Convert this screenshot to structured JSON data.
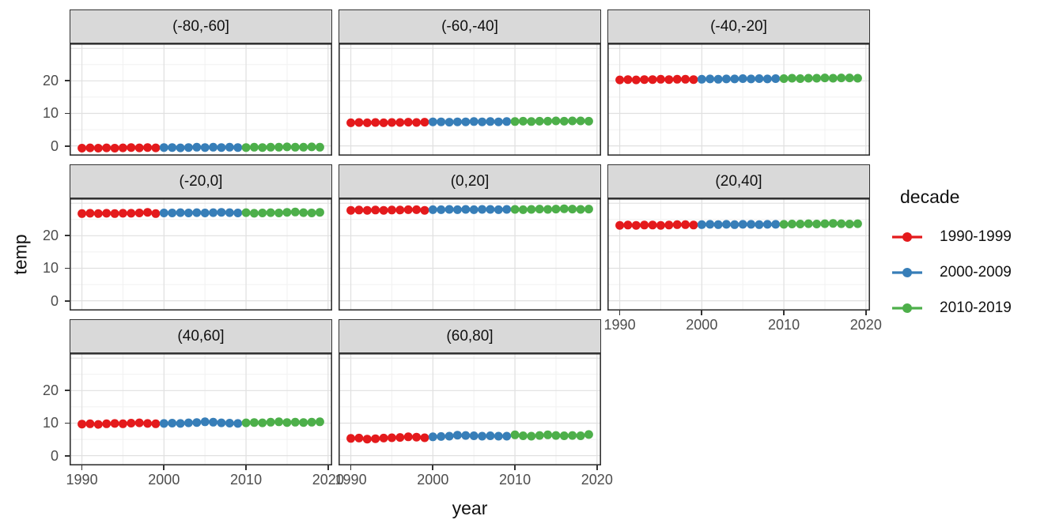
{
  "chart_data": {
    "type": "scatter",
    "title": "",
    "xlabel": "year",
    "ylabel": "temp",
    "legend": {
      "title": "decade",
      "position": "right",
      "entries": [
        {
          "label": "1990-1999",
          "color": "#E41A1C",
          "year_start": 1990,
          "year_end": 1999
        },
        {
          "label": "2000-2009",
          "color": "#377EB8",
          "year_start": 2000,
          "year_end": 2009
        },
        {
          "label": "2010-2019",
          "color": "#4DAF4A",
          "year_start": 2010,
          "year_end": 2019
        }
      ]
    },
    "axes": {
      "xlim": [
        1988.5,
        2020.5
      ],
      "ylim": [
        -3,
        31.5
      ],
      "x_ticks": [
        1990,
        2000,
        2010,
        2020
      ],
      "y_ticks": [
        0,
        10,
        20
      ],
      "x_grid_minor": [
        1995,
        2005,
        2015
      ],
      "y_grid_major": [
        0,
        10,
        20,
        30
      ],
      "y_grid_minor": [
        5,
        15,
        25
      ],
      "grid": true
    },
    "style": {
      "strip_bg": "#D9D9D9",
      "panel_border": "#333333",
      "grid_major": "#E0E0E0",
      "grid_minor": "#F1F1F1",
      "tick_label_color": "#4D4D4D",
      "text_color": "#111111"
    },
    "x": [
      1990,
      1991,
      1992,
      1993,
      1994,
      1995,
      1996,
      1997,
      1998,
      1999,
      2000,
      2001,
      2002,
      2003,
      2004,
      2005,
      2006,
      2007,
      2008,
      2009,
      2010,
      2011,
      2012,
      2013,
      2014,
      2015,
      2016,
      2017,
      2018,
      2019
    ],
    "facets": [
      {
        "label": "(-80,-60]",
        "values": [
          -0.7,
          -0.6,
          -0.7,
          -0.6,
          -0.7,
          -0.6,
          -0.5,
          -0.6,
          -0.5,
          -0.6,
          -0.5,
          -0.5,
          -0.6,
          -0.5,
          -0.4,
          -0.5,
          -0.4,
          -0.5,
          -0.4,
          -0.5,
          -0.5,
          -0.4,
          -0.5,
          -0.4,
          -0.4,
          -0.3,
          -0.4,
          -0.4,
          -0.3,
          -0.4
        ]
      },
      {
        "label": "(-60,-40]",
        "values": [
          7.1,
          7.2,
          7.1,
          7.2,
          7.1,
          7.2,
          7.2,
          7.3,
          7.2,
          7.3,
          7.4,
          7.4,
          7.3,
          7.4,
          7.4,
          7.5,
          7.4,
          7.5,
          7.4,
          7.5,
          7.5,
          7.6,
          7.5,
          7.6,
          7.6,
          7.7,
          7.6,
          7.7,
          7.7,
          7.6
        ]
      },
      {
        "label": "(-40,-20]",
        "values": [
          20.3,
          20.4,
          20.3,
          20.4,
          20.4,
          20.5,
          20.4,
          20.5,
          20.5,
          20.4,
          20.5,
          20.6,
          20.5,
          20.6,
          20.6,
          20.7,
          20.6,
          20.7,
          20.6,
          20.7,
          20.7,
          20.8,
          20.7,
          20.8,
          20.8,
          20.9,
          20.8,
          20.9,
          20.9,
          20.8
        ]
      },
      {
        "label": "(-20,0]",
        "values": [
          26.8,
          26.9,
          26.8,
          26.9,
          26.8,
          26.9,
          26.9,
          27.0,
          27.2,
          26.8,
          27.0,
          27.0,
          27.1,
          27.0,
          27.1,
          27.0,
          27.1,
          27.2,
          27.1,
          27.0,
          27.1,
          26.9,
          27.0,
          27.1,
          27.0,
          27.2,
          27.3,
          27.1,
          27.0,
          27.2
        ]
      },
      {
        "label": "(0,20]",
        "values": [
          27.8,
          27.9,
          27.8,
          27.9,
          27.8,
          27.9,
          27.9,
          28.0,
          28.0,
          27.8,
          28.0,
          28.0,
          28.1,
          28.0,
          28.1,
          28.0,
          28.1,
          28.1,
          28.0,
          28.1,
          28.1,
          28.0,
          28.1,
          28.2,
          28.1,
          28.2,
          28.3,
          28.2,
          28.1,
          28.2
        ]
      },
      {
        "label": "(20,40]",
        "values": [
          23.2,
          23.3,
          23.2,
          23.3,
          23.3,
          23.2,
          23.3,
          23.4,
          23.4,
          23.3,
          23.4,
          23.5,
          23.4,
          23.5,
          23.4,
          23.5,
          23.5,
          23.4,
          23.5,
          23.5,
          23.5,
          23.6,
          23.6,
          23.7,
          23.6,
          23.7,
          23.8,
          23.7,
          23.6,
          23.7
        ]
      },
      {
        "label": "(40,60]",
        "values": [
          9.7,
          9.8,
          9.6,
          9.8,
          9.9,
          9.8,
          10.0,
          10.1,
          9.9,
          9.8,
          9.9,
          10.0,
          9.9,
          10.1,
          10.2,
          10.4,
          10.3,
          10.1,
          10.0,
          9.9,
          10.1,
          10.2,
          10.1,
          10.3,
          10.4,
          10.2,
          10.3,
          10.2,
          10.3,
          10.4
        ]
      },
      {
        "label": "(60,80]",
        "values": [
          5.3,
          5.4,
          5.1,
          5.2,
          5.4,
          5.5,
          5.6,
          5.8,
          5.7,
          5.5,
          5.8,
          5.9,
          6.0,
          6.3,
          6.2,
          6.1,
          6.0,
          6.1,
          6.0,
          6.0,
          6.4,
          6.1,
          6.0,
          6.2,
          6.4,
          6.2,
          6.1,
          6.2,
          6.1,
          6.5
        ]
      }
    ]
  }
}
